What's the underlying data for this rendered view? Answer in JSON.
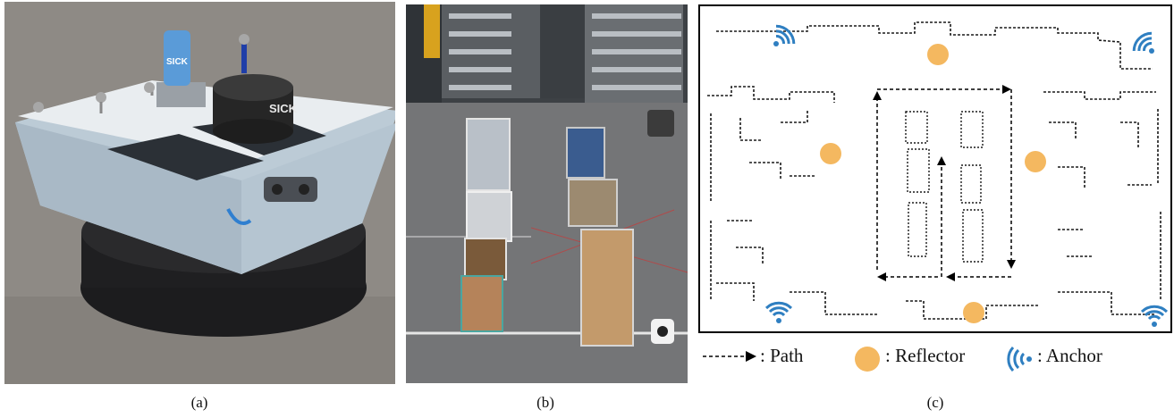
{
  "captions": {
    "a": "(a)",
    "b": "(b)",
    "c": "(c)"
  },
  "robot_labels": {
    "tag_text": "SICK",
    "lidar_text": "SICK"
  },
  "legend": {
    "path_label": ": Path",
    "reflector_label": ": Reflector",
    "anchor_label": ": Anchor"
  },
  "colors": {
    "reflector": "#f4b860",
    "anchor": "#2f7fc1",
    "map_ink": "#1a1a1a"
  },
  "icons": {
    "path": "dashed-arrow-icon",
    "reflector": "orange-circle-icon",
    "anchor": "signal-waves-icon"
  }
}
